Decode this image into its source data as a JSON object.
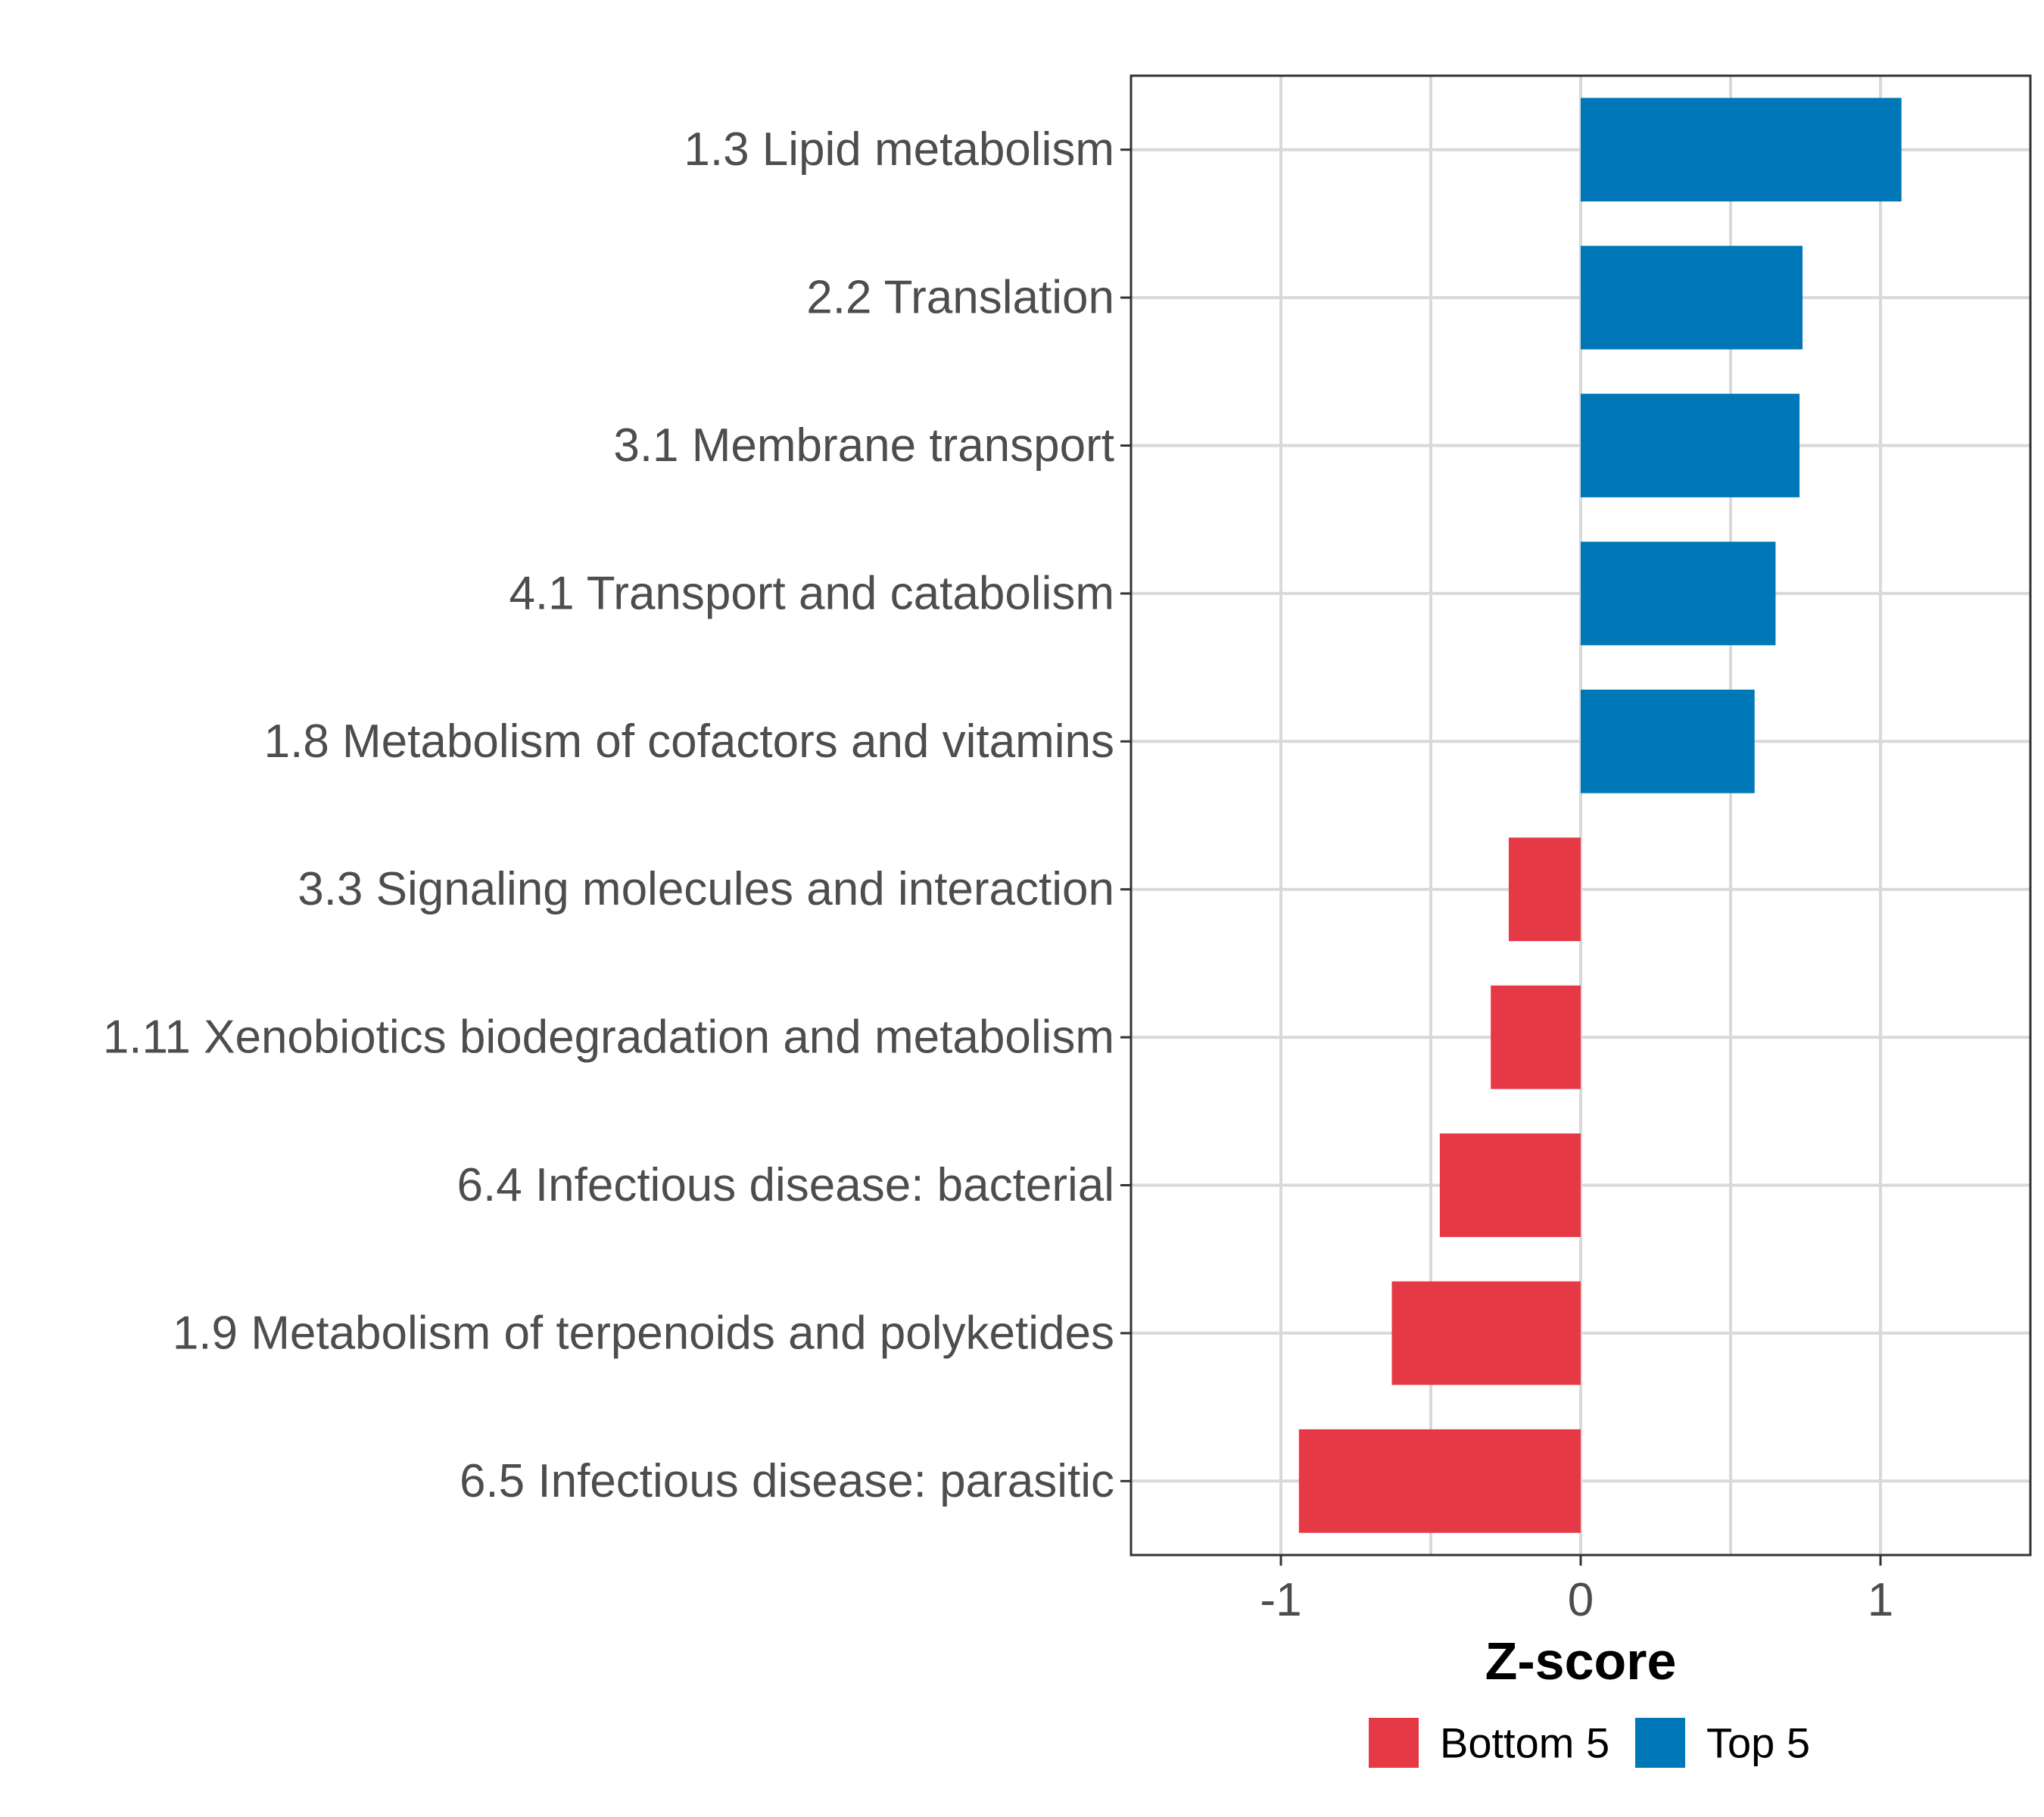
{
  "chart_data": {
    "type": "bar",
    "orientation": "horizontal",
    "title": "",
    "xlabel": "Z-score",
    "ylabel": "",
    "xlim": [
      -1.5,
      1.5
    ],
    "xticks": [
      -1,
      0,
      1
    ],
    "xtick_labels": [
      "-1",
      "0",
      "1"
    ],
    "grid": true,
    "legend_position": "bottom",
    "categories": [
      "1.3 Lipid metabolism",
      "2.2 Translation",
      "3.1 Membrane transport",
      "4.1 Transport and catabolism",
      "1.8 Metabolism of cofactors and vitamins",
      "3.3 Signaling molecules and interaction",
      "1.11 Xenobiotics biodegradation and metabolism",
      "6.4 Infectious disease: bacterial",
      "1.9 Metabolism of terpenoids and polyketides",
      "6.5 Infectious disease: parasitic"
    ],
    "values": [
      1.07,
      0.74,
      0.73,
      0.65,
      0.58,
      -0.24,
      -0.3,
      -0.47,
      -0.63,
      -0.94
    ],
    "groups": [
      "Top 5",
      "Top 5",
      "Top 5",
      "Top 5",
      "Top 5",
      "Bottom 5",
      "Bottom 5",
      "Bottom 5",
      "Bottom 5",
      "Bottom 5"
    ],
    "legend": [
      {
        "name": "Bottom 5",
        "color": "#e63946"
      },
      {
        "name": "Top 5",
        "color": "#0077b6"
      }
    ]
  }
}
